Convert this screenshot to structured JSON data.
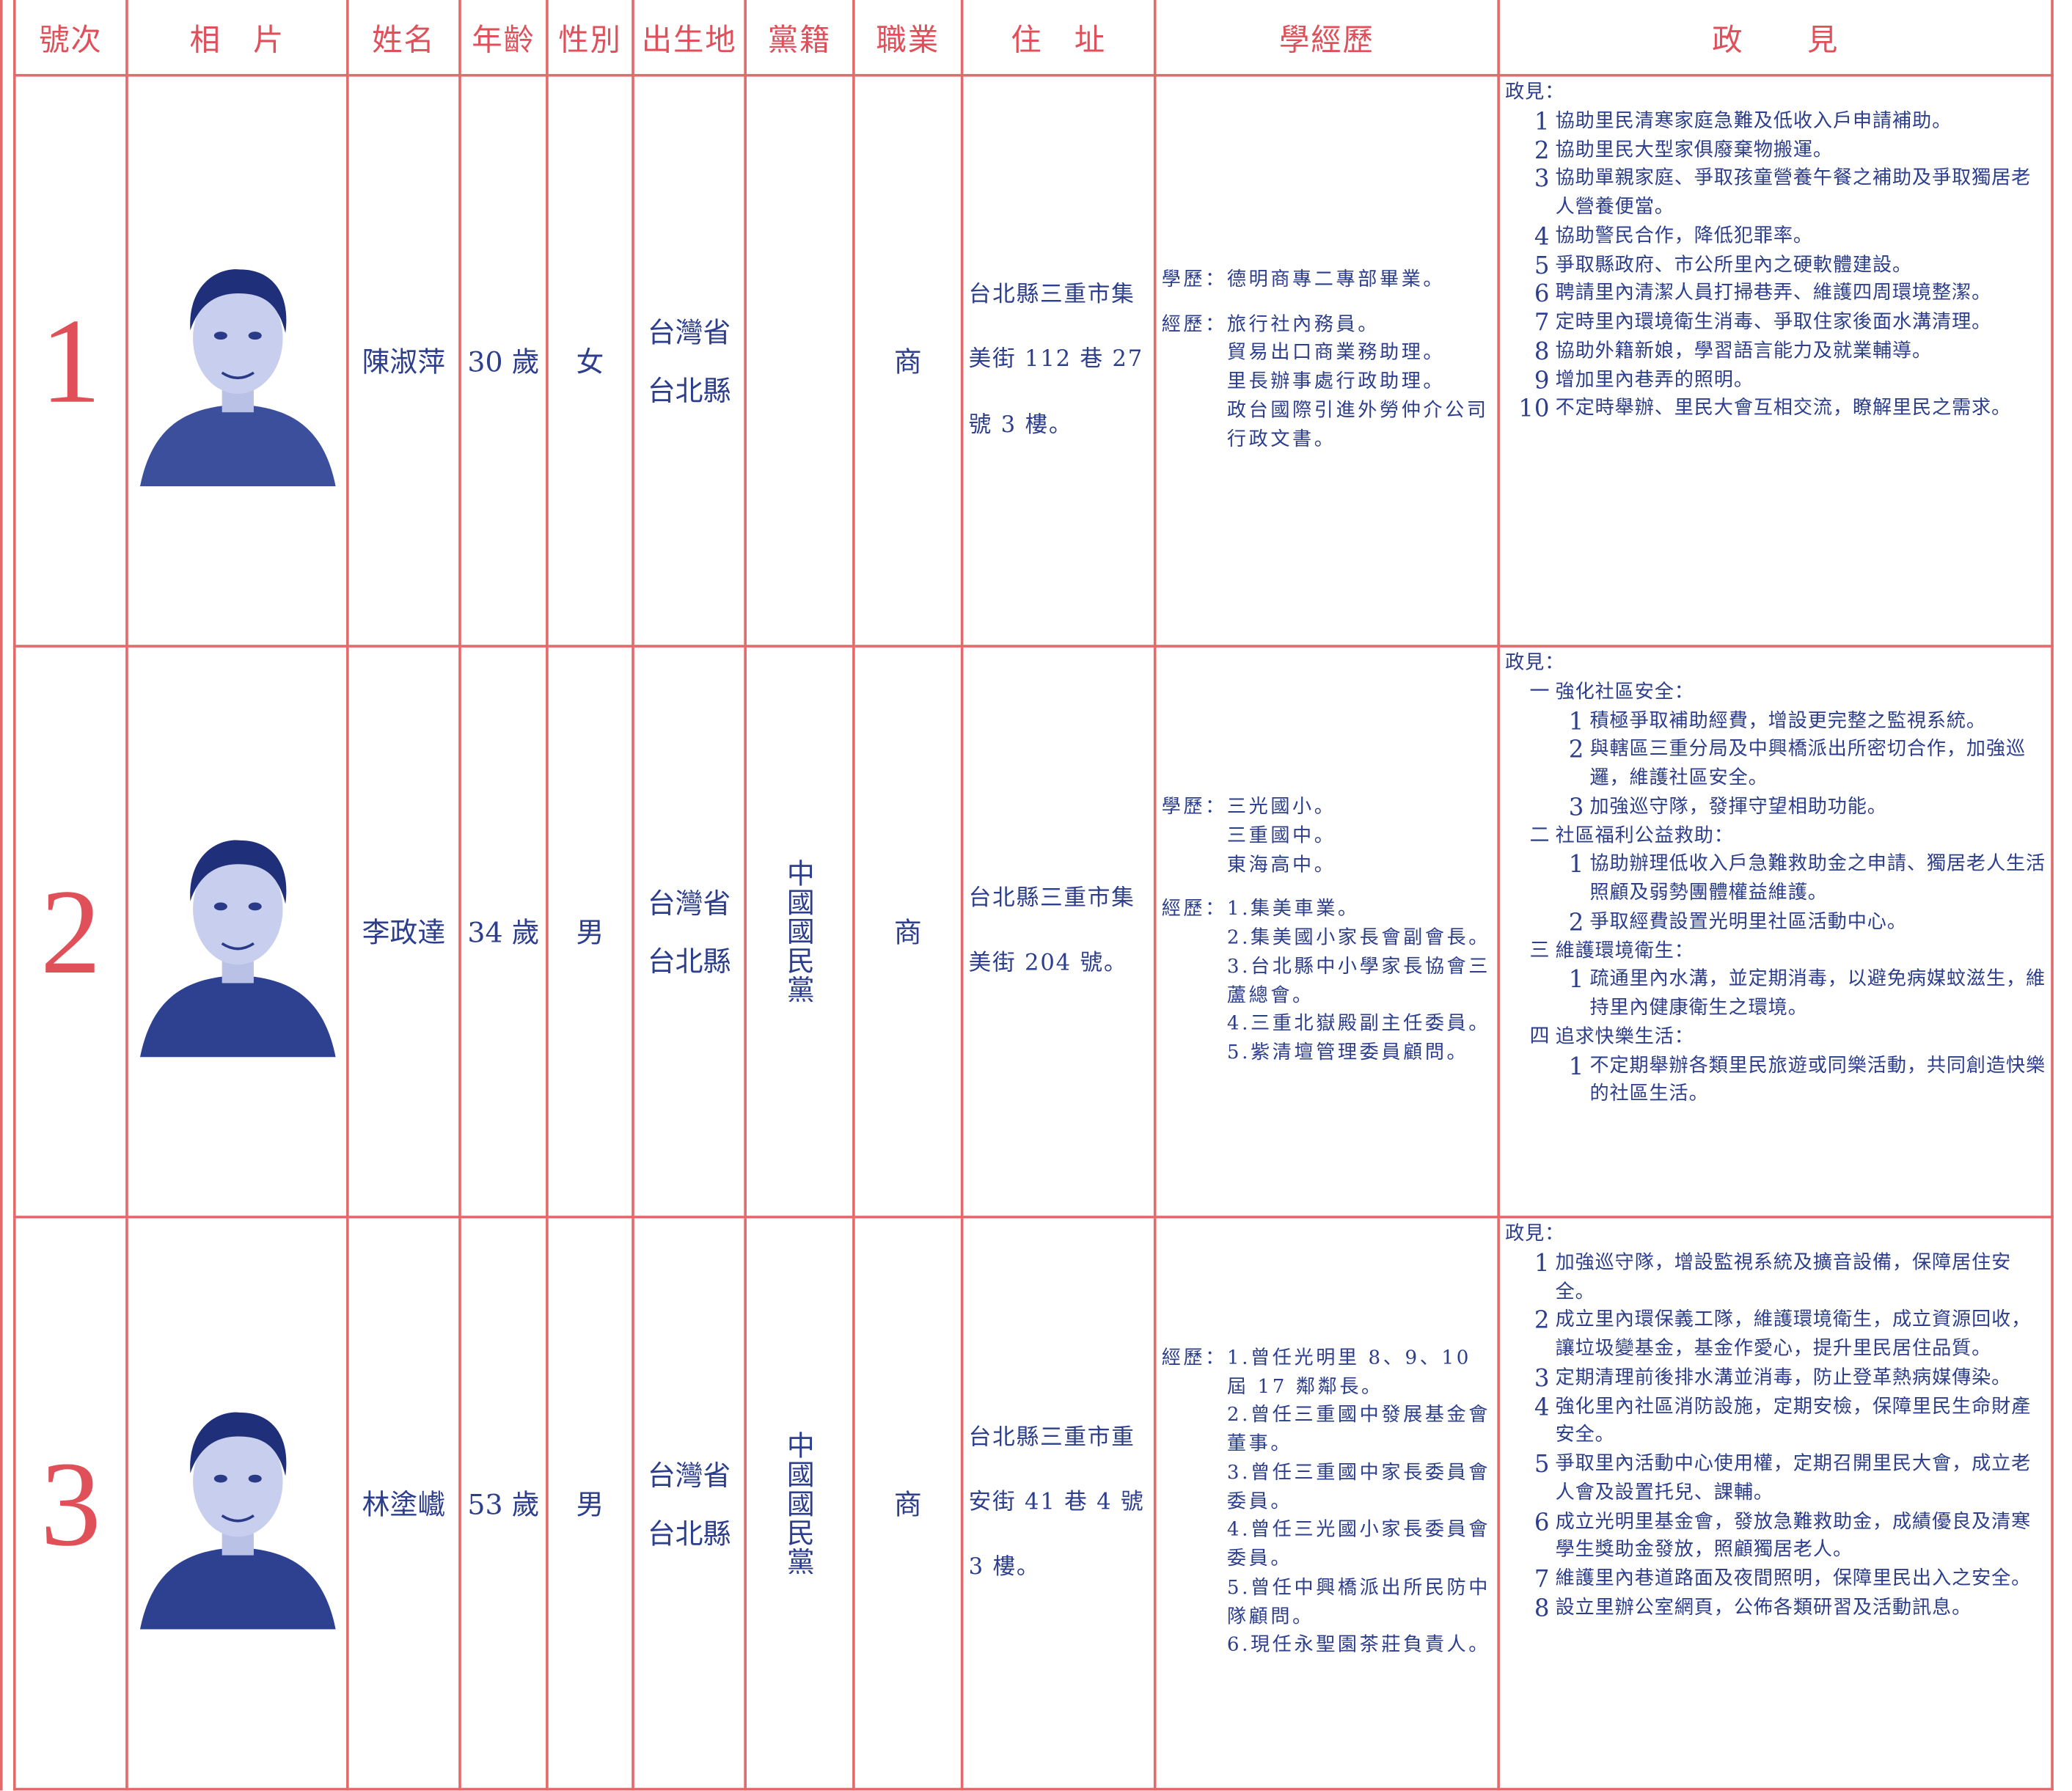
{
  "header": {
    "columns": [
      "號次",
      "相　片",
      "姓名",
      "年齡",
      "性別",
      "出生地",
      "黨籍",
      "職業",
      "住　址",
      "學經歷",
      "政　　見"
    ]
  },
  "candidates": [
    {
      "number": "1",
      "name": "陳淑萍",
      "age": "30 歲",
      "gender": "女",
      "birthplace": [
        "台灣省",
        "台北縣"
      ],
      "occupation": "商",
      "address": "台北縣三重市集美街 112 巷 27 號 3 樓。",
      "education_label": "學歷：",
      "education": [
        "德明商專二專部畢業。"
      ],
      "experience_label": "經歷：",
      "experience": [
        "旅行社內務員。",
        "貿易出口商業務助理。",
        "里長辦事處行政助理。",
        "政台國際引進外勞仲介公司行政文書。"
      ],
      "policy_label": "政見：",
      "policies": [
        {
          "no": "1",
          "text": "協助里民清寒家庭急難及低收入戶申請補助。"
        },
        {
          "no": "2",
          "text": "協助里民大型家俱廢棄物搬運。"
        },
        {
          "no": "3",
          "text": "協助單親家庭、爭取孩童營養午餐之補助及爭取獨居老人營養便當。"
        },
        {
          "no": "4",
          "text": "協助警民合作，降低犯罪率。"
        },
        {
          "no": "5",
          "text": "爭取縣政府、市公所里內之硬軟體建設。"
        },
        {
          "no": "6",
          "text": "聘請里內清潔人員打掃巷弄、維護四周環境整潔。"
        },
        {
          "no": "7",
          "text": "定時里內環境衛生消毒、爭取住家後面水溝清理。"
        },
        {
          "no": "8",
          "text": "協助外籍新娘，學習語言能力及就業輔導。"
        },
        {
          "no": "9",
          "text": "增加里內巷弄的照明。"
        },
        {
          "no": "10",
          "text": "不定時舉辦、里民大會互相交流，瞭解里民之需求。"
        }
      ]
    },
    {
      "number": "2",
      "name": "李政達",
      "age": "34 歲",
      "gender": "男",
      "birthplace": [
        "台灣省",
        "台北縣"
      ],
      "party": "中國國民黨",
      "occupation": "商",
      "address": "台北縣三重市集美街 204 號。",
      "education_label": "學歷：",
      "education": [
        "三光國小。",
        "三重國中。",
        "東海高中。"
      ],
      "experience_label": "經歷：",
      "experience": [
        "1.集美車業。",
        "2.集美國小家長會副會長。",
        "3.台北縣中小學家長協會三蘆總會。",
        "4.三重北嶽殿副主任委員。",
        "5.紫清壇管理委員顧問。"
      ],
      "policy_label": "政見：",
      "policies": [
        {
          "no": "一",
          "text": "強化社區安全：",
          "sub": [
            {
              "no": "1",
              "text": "積極爭取補助經費，增設更完整之監視系統。"
            },
            {
              "no": "2",
              "text": "與轄區三重分局及中興橋派出所密切合作，加強巡邏，維護社區安全。"
            },
            {
              "no": "3",
              "text": "加強巡守隊，發揮守望相助功能。"
            }
          ]
        },
        {
          "no": "二",
          "text": "社區福利公益救助：",
          "sub": [
            {
              "no": "1",
              "text": "協助辦理低收入戶急難救助金之申請、獨居老人生活照顧及弱勢團體權益維護。"
            },
            {
              "no": "2",
              "text": "爭取經費設置光明里社區活動中心。"
            }
          ]
        },
        {
          "no": "三",
          "text": "維護環境衛生：",
          "sub": [
            {
              "no": "1",
              "text": "疏通里內水溝，並定期消毒，以避免病媒蚊滋生，維持里內健康衛生之環境。"
            }
          ]
        },
        {
          "no": "四",
          "text": "追求快樂生活：",
          "sub": [
            {
              "no": "1",
              "text": "不定期舉辦各類里民旅遊或同樂活動，共同創造快樂的社區生活。"
            }
          ]
        }
      ]
    },
    {
      "number": "3",
      "name": "林塗巇",
      "age": "53 歲",
      "gender": "男",
      "birthplace": [
        "台灣省",
        "台北縣"
      ],
      "party": "中國國民黨",
      "occupation": "商",
      "address": "台北縣三重市重安街 41 巷 4 號 3 樓。",
      "experience_label": "經歷：",
      "experience": [
        "1.曾任光明里 8、9、10 屆 17 鄰鄰長。",
        "2.曾任三重國中發展基金會董事。",
        "3.曾任三重國中家長委員會委員。",
        "4.曾任三光國小家長委員會委員。",
        "5.曾任中興橋派出所民防中隊顧問。",
        "6.現任永聖園茶莊負責人。"
      ],
      "policy_label": "政見：",
      "policies": [
        {
          "no": "1",
          "text": "加強巡守隊，增設監視系統及擴音設備，保障居住安全。"
        },
        {
          "no": "2",
          "text": "成立里內環保義工隊，維護環境衛生，成立資源回收，讓垃圾變基金，基金作愛心，提升里民居住品質。"
        },
        {
          "no": "3",
          "text": "定期清理前後排水溝並消毒，防止登革熱病媒傳染。"
        },
        {
          "no": "4",
          "text": "強化里內社區消防設施，定期安檢，保障里民生命財產安全。"
        },
        {
          "no": "5",
          "text": "爭取里內活動中心使用權，定期召開里民大會，成立老人會及設置托兒、課輔。"
        },
        {
          "no": "6",
          "text": "成立光明里基金會，發放急難救助金，成績優良及清寒學生獎助金發放，照顧獨居老人。"
        },
        {
          "no": "7",
          "text": "維護里內巷道路面及夜間照明，保障里民出入之安全。"
        },
        {
          "no": "8",
          "text": "設立里辦公室網頁，公佈各類研習及活動訊息。"
        }
      ]
    }
  ]
}
